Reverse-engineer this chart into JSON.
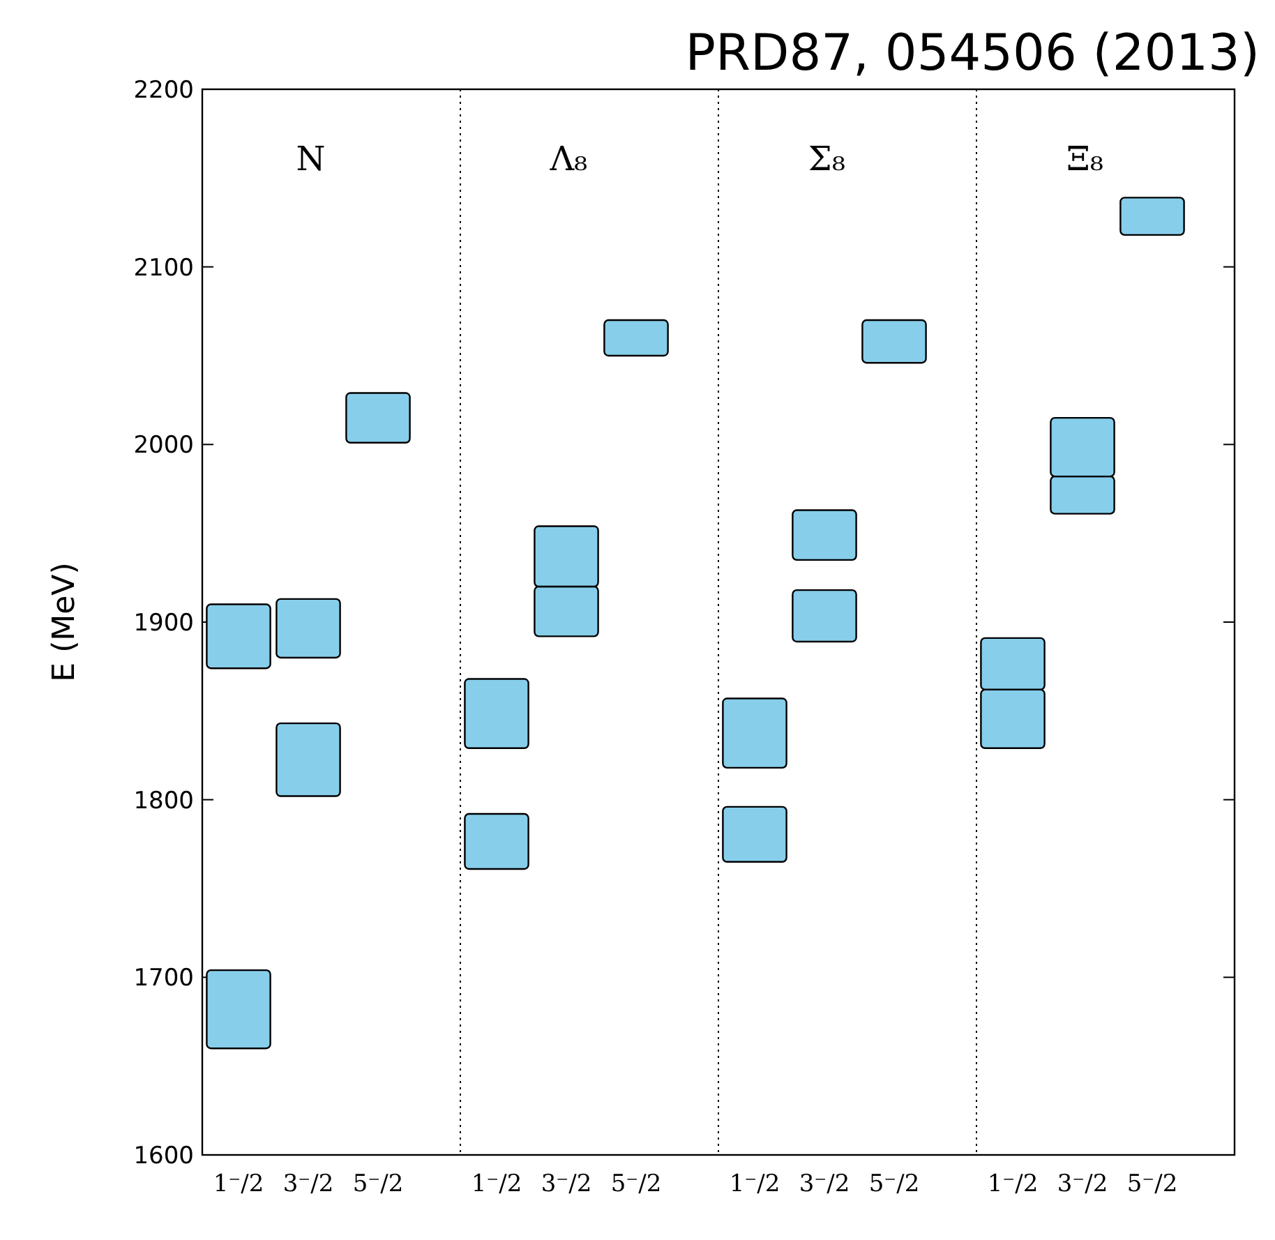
{
  "chart_data": [
    {
      "type": "bar",
      "title": "N",
      "ylabel": "E (MeV)",
      "categories": [
        "1⁻/2",
        "3⁻/2",
        "5⁻/2"
      ],
      "ylim": [
        1600,
        2200
      ],
      "yticks": [
        1600,
        1700,
        1800,
        1900,
        2000,
        2100,
        2200
      ],
      "series": [
        {
          "color": "#87ceeb",
          "base": [
            1660,
            1802,
            2001
          ],
          "values": [
            44,
            41,
            28
          ]
        },
        {
          "color": "#87ceeb",
          "base": [
            1874,
            1880,
            null
          ],
          "values": [
            36,
            33,
            null
          ]
        }
      ]
    },
    {
      "type": "bar",
      "title": "Λ₈",
      "categories": [
        "1⁻/2",
        "3⁻/2",
        "5⁻/2"
      ],
      "ylim": [
        1600,
        2200
      ],
      "yticks": [
        1600,
        1700,
        1800,
        1900,
        2000,
        2100,
        2200
      ],
      "tick_labels": "x",
      "series": [
        {
          "color": "#87ceeb",
          "base": [
            1761,
            1892,
            2050
          ],
          "values": [
            31,
            28,
            20
          ]
        },
        {
          "color": "#87ceeb",
          "base": [
            1829,
            1920,
            null
          ],
          "values": [
            39,
            34,
            null
          ]
        }
      ]
    },
    {
      "type": "bar",
      "title": "Σ₈",
      "categories": [
        "1⁻/2",
        "3⁻/2",
        "5⁻/2"
      ],
      "ylim": [
        1600,
        2200
      ],
      "yticks": [
        1600,
        1700,
        1800,
        1900,
        2000,
        2100,
        2200
      ],
      "tick_labels": "x",
      "series": [
        {
          "color": "#87ceeb",
          "base": [
            1765,
            1889,
            2046
          ],
          "values": [
            31,
            29,
            24
          ]
        },
        {
          "color": "#87ceeb",
          "base": [
            1818,
            1935,
            null
          ],
          "values": [
            39,
            28,
            null
          ]
        }
      ]
    },
    {
      "type": "bar",
      "title": "Ξ₈",
      "categories": [
        "1⁻/2",
        "3⁻/2",
        "5⁻/2"
      ],
      "ylim": [
        1600,
        2200
      ],
      "yticks": [
        1600,
        1700,
        1800,
        1900,
        2000,
        2100,
        2200
      ],
      "tick_labels": "x",
      "annotations": [
        "PRD87, 054506 (2013)"
      ],
      "series": [
        {
          "color": "#87ceeb",
          "base": [
            1829,
            1961,
            2118
          ],
          "values": [
            33,
            21,
            21
          ]
        },
        {
          "color": "#87ceeb",
          "base": [
            1862,
            1982,
            null
          ],
          "values": [
            29,
            33,
            null
          ]
        }
      ]
    }
  ]
}
